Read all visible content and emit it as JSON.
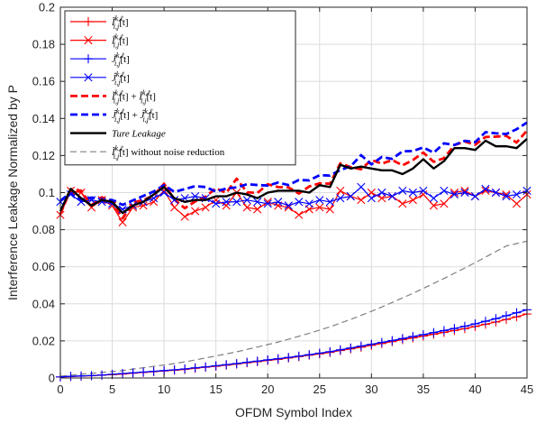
{
  "chart_data": {
    "type": "line",
    "xlabel": "OFDM Symbol Index",
    "ylabel": "Interference Leakage Normalized by P",
    "xlim": [
      0,
      45
    ],
    "ylim": [
      0,
      0.2
    ],
    "xticks": [
      0,
      5,
      10,
      15,
      20,
      25,
      30,
      35,
      40,
      45
    ],
    "yticks": [
      0,
      0.02,
      0.04,
      0.06,
      0.08,
      0.1,
      0.12,
      0.14,
      0.16,
      0.18,
      0.2
    ],
    "xtick_labels": [
      "0",
      "5",
      "10",
      "15",
      "20",
      "25",
      "30",
      "35",
      "40",
      "45"
    ],
    "ytick_labels": [
      "0",
      "0.02",
      "0.04",
      "0.06",
      "0.08",
      "0.1",
      "0.12",
      "0.14",
      "0.16",
      "0.18",
      "0.2"
    ],
    "grid": true,
    "legend_position": "top-left",
    "x": [
      0,
      1,
      2,
      3,
      4,
      5,
      6,
      7,
      8,
      9,
      10,
      11,
      12,
      13,
      14,
      15,
      16,
      17,
      18,
      19,
      20,
      21,
      22,
      23,
      24,
      25,
      26,
      27,
      28,
      29,
      30,
      31,
      32,
      33,
      34,
      35,
      36,
      37,
      38,
      39,
      40,
      41,
      42,
      43,
      44,
      45
    ],
    "series": [
      {
        "name": "Ĩ^{k,ℓ}_{i,j}[t]",
        "color": "#ff0000",
        "line": "solid",
        "marker": "plus",
        "values": [
          0.0005,
          0.0008,
          0.001,
          0.0012,
          0.0015,
          0.0018,
          0.0021,
          0.0026,
          0.003,
          0.0034,
          0.0038,
          0.0042,
          0.0046,
          0.0052,
          0.0058,
          0.0063,
          0.0069,
          0.0075,
          0.0082,
          0.0088,
          0.0095,
          0.01,
          0.0108,
          0.0115,
          0.0123,
          0.013,
          0.0138,
          0.0148,
          0.0157,
          0.0166,
          0.0176,
          0.0186,
          0.0196,
          0.0207,
          0.0216,
          0.0226,
          0.0236,
          0.0246,
          0.0256,
          0.0266,
          0.0278,
          0.029,
          0.0302,
          0.0316,
          0.033,
          0.0345
        ]
      },
      {
        "name": "Î^{k,ℓ}_{i,j}[t]",
        "color": "#ff0000",
        "line": "solid",
        "marker": "x",
        "values": [
          0.088,
          0.101,
          0.1,
          0.092,
          0.096,
          0.093,
          0.084,
          0.092,
          0.093,
          0.095,
          0.101,
          0.092,
          0.087,
          0.09,
          0.092,
          0.096,
          0.093,
          0.1,
          0.092,
          0.091,
          0.095,
          0.093,
          0.092,
          0.088,
          0.091,
          0.092,
          0.091,
          0.101,
          0.098,
          0.096,
          0.1,
          0.097,
          0.098,
          0.094,
          0.096,
          0.099,
          0.093,
          0.094,
          0.1,
          0.101,
          0.098,
          0.101,
          0.1,
          0.099,
          0.094,
          0.099
        ]
      },
      {
        "name": "J̃^{k,ℓ}_{i,j}[t]",
        "color": "#0000ff",
        "line": "solid",
        "marker": "plus",
        "values": [
          0.0006,
          0.0009,
          0.0011,
          0.0013,
          0.0016,
          0.002,
          0.0024,
          0.0028,
          0.0032,
          0.0036,
          0.004,
          0.0044,
          0.0049,
          0.0055,
          0.006,
          0.0066,
          0.0072,
          0.0078,
          0.0085,
          0.0091,
          0.0098,
          0.0104,
          0.0111,
          0.0118,
          0.0126,
          0.0134,
          0.0142,
          0.0152,
          0.0162,
          0.0172,
          0.0182,
          0.0192,
          0.0202,
          0.0213,
          0.0224,
          0.0234,
          0.0245,
          0.0256,
          0.0267,
          0.0279,
          0.0292,
          0.0306,
          0.032,
          0.0336,
          0.0352,
          0.0368
        ]
      },
      {
        "name": "Ĵ^{k,ℓ}_{i,j}[t]",
        "color": "#0000ff",
        "line": "solid",
        "marker": "x",
        "values": [
          0.095,
          0.099,
          0.095,
          0.096,
          0.095,
          0.094,
          0.091,
          0.093,
          0.095,
          0.097,
          0.1,
          0.096,
          0.097,
          0.098,
          0.097,
          0.094,
          0.095,
          0.095,
          0.096,
          0.095,
          0.094,
          0.095,
          0.093,
          0.095,
          0.094,
          0.096,
          0.095,
          0.097,
          0.098,
          0.103,
          0.097,
          0.1,
          0.098,
          0.101,
          0.1,
          0.101,
          0.097,
          0.101,
          0.099,
          0.1,
          0.098,
          0.102,
          0.1,
          0.098,
          0.099,
          0.101
        ]
      },
      {
        "name": "Ĩ^{k,ℓ}_{i,j}[t] + Î^{k,ℓ}_{i,j}[t]",
        "color": "#ff0000",
        "line": "dashed",
        "marker": "none",
        "values": [
          0.0885,
          0.1018,
          0.101,
          0.0932,
          0.0975,
          0.0948,
          0.0861,
          0.0946,
          0.096,
          0.0984,
          0.1048,
          0.0962,
          0.0916,
          0.0952,
          0.0978,
          0.1023,
          0.0999,
          0.1075,
          0.1002,
          0.0998,
          0.1045,
          0.103,
          0.1028,
          0.0995,
          0.1033,
          0.105,
          0.1048,
          0.1158,
          0.1137,
          0.1126,
          0.1176,
          0.1156,
          0.1176,
          0.1147,
          0.1176,
          0.1216,
          0.1166,
          0.1186,
          0.1256,
          0.1276,
          0.1258,
          0.13,
          0.1302,
          0.1306,
          0.127,
          0.1335
        ]
      },
      {
        "name": "J̃^{k,ℓ}_{i,j}[t] + Ĵ^{k,ℓ}_{i,j}[t]",
        "color": "#0000ff",
        "line": "dashed",
        "marker": "none",
        "values": [
          0.0956,
          0.0999,
          0.0961,
          0.0973,
          0.0966,
          0.096,
          0.0934,
          0.0958,
          0.0982,
          0.1006,
          0.104,
          0.1004,
          0.1019,
          0.1035,
          0.103,
          0.1006,
          0.1022,
          0.1028,
          0.1045,
          0.1041,
          0.1038,
          0.1054,
          0.1041,
          0.1068,
          0.1066,
          0.1094,
          0.1092,
          0.1122,
          0.1142,
          0.1202,
          0.1152,
          0.1192,
          0.1182,
          0.1223,
          0.1224,
          0.1244,
          0.1215,
          0.1266,
          0.1257,
          0.1279,
          0.1272,
          0.1326,
          0.132,
          0.1316,
          0.1342,
          0.1378
        ]
      },
      {
        "name": "Ture Leakage",
        "color": "#000000",
        "line": "solid-thick",
        "marker": "none",
        "values": [
          0.09,
          0.102,
          0.097,
          0.093,
          0.096,
          0.095,
          0.089,
          0.093,
          0.095,
          0.099,
          0.103,
          0.097,
          0.095,
          0.096,
          0.096,
          0.098,
          0.098,
          0.1,
          0.099,
          0.097,
          0.1,
          0.101,
          0.101,
          0.101,
          0.1,
          0.104,
          0.103,
          0.115,
          0.113,
          0.114,
          0.113,
          0.112,
          0.112,
          0.11,
          0.113,
          0.118,
          0.113,
          0.117,
          0.124,
          0.124,
          0.123,
          0.128,
          0.125,
          0.125,
          0.124,
          0.129
        ]
      },
      {
        "name": "Ĩ^{k,ℓ}_{i,j}[t] without noise reduction",
        "color": "#808080",
        "line": "dashed-thin",
        "marker": "none",
        "values": [
          0.001,
          0.0015,
          0.002,
          0.0025,
          0.003,
          0.0035,
          0.004,
          0.0048,
          0.0055,
          0.0063,
          0.007,
          0.0078,
          0.0087,
          0.0097,
          0.0108,
          0.0119,
          0.013,
          0.0141,
          0.0154,
          0.0167,
          0.018,
          0.0194,
          0.0209,
          0.0225,
          0.0241,
          0.0258,
          0.0276,
          0.0296,
          0.0316,
          0.0338,
          0.036,
          0.0383,
          0.0407,
          0.0432,
          0.0457,
          0.0483,
          0.051,
          0.0537,
          0.0565,
          0.0593,
          0.0622,
          0.0652,
          0.0682,
          0.0712,
          0.0725,
          0.0738
        ]
      }
    ]
  },
  "legend": {
    "entries": [
      {
        "base": "Ĩ",
        "sup": "k,ℓ",
        "sub": "i,j",
        "tail": "[t]"
      },
      {
        "base": "Î",
        "sup": "k,ℓ",
        "sub": "i,j",
        "tail": "[t]"
      },
      {
        "base": "J̃",
        "sup": "k,ℓ",
        "sub": "i,j",
        "tail": "[t]"
      },
      {
        "base": "Ĵ",
        "sup": "k,ℓ",
        "sub": "i,j",
        "tail": "[t]"
      },
      {
        "base": "Ĩ",
        "sup": "k,ℓ",
        "sub": "i,j",
        "tail": "[t] + ",
        "base2": "Î",
        "sup2": "k,ℓ",
        "sub2": "i,j",
        "tail2": "[t]"
      },
      {
        "base": "J̃",
        "sup": "k,ℓ",
        "sub": "i,j",
        "tail": "[t] + ",
        "base2": "Ĵ",
        "sup2": "k,ℓ",
        "sub2": "i,j",
        "tail2": "[t]"
      },
      {
        "plain": "Ture Leakage"
      },
      {
        "base": "Ĩ",
        "sup": "k,ℓ",
        "sub": "i,j",
        "tail": "[t] without noise reduction"
      }
    ]
  }
}
